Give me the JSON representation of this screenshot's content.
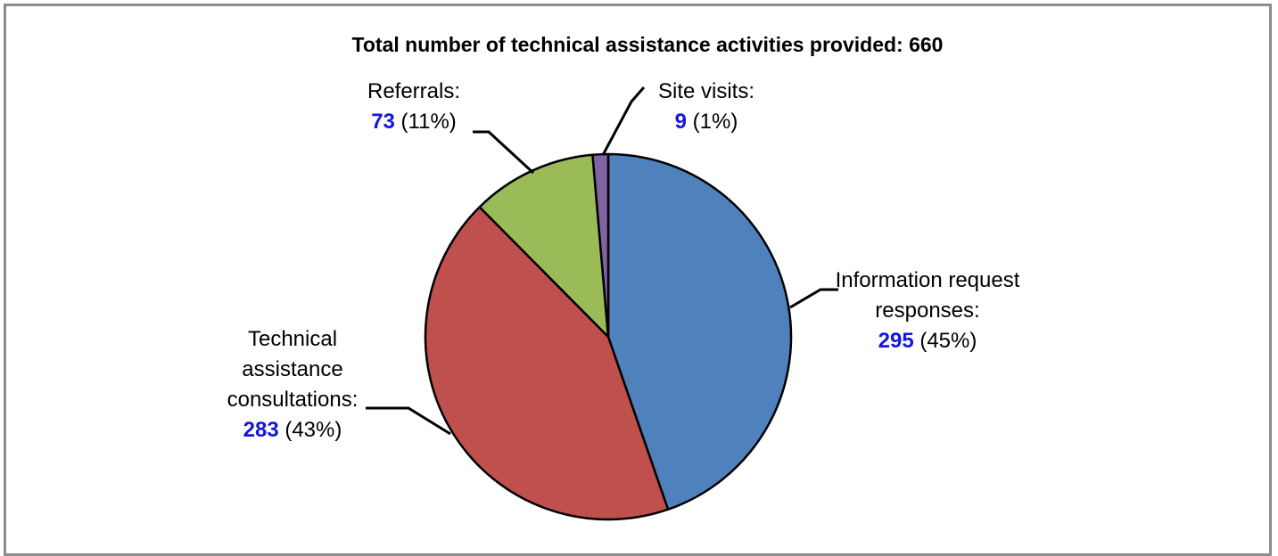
{
  "chart_data": {
    "type": "pie",
    "title": "Total number of technical assistance activities provided: 660",
    "slices": [
      {
        "key": "info",
        "name_lines": [
          "Information request",
          "responses:"
        ],
        "value": 295,
        "value_label": "295",
        "percent_label": "(45%)",
        "color": "#4f81bd"
      },
      {
        "key": "tech",
        "name_lines": [
          "Technical",
          "assistance",
          "consultations:"
        ],
        "value": 283,
        "value_label": "283",
        "percent_label": "(43%)",
        "color": "#c0504d"
      },
      {
        "key": "referrals",
        "name_lines": [
          "Referrals:"
        ],
        "value": 73,
        "value_label": "73",
        "percent_label": "(11%)",
        "color": "#9bbb59"
      },
      {
        "key": "site",
        "name_lines": [
          "Site visits:"
        ],
        "value": 9,
        "value_label": "9",
        "percent_label": "(1%)",
        "color": "#8064a2"
      }
    ],
    "value_label_color": "#1515e0",
    "frame_color": "#8c8c8c"
  }
}
